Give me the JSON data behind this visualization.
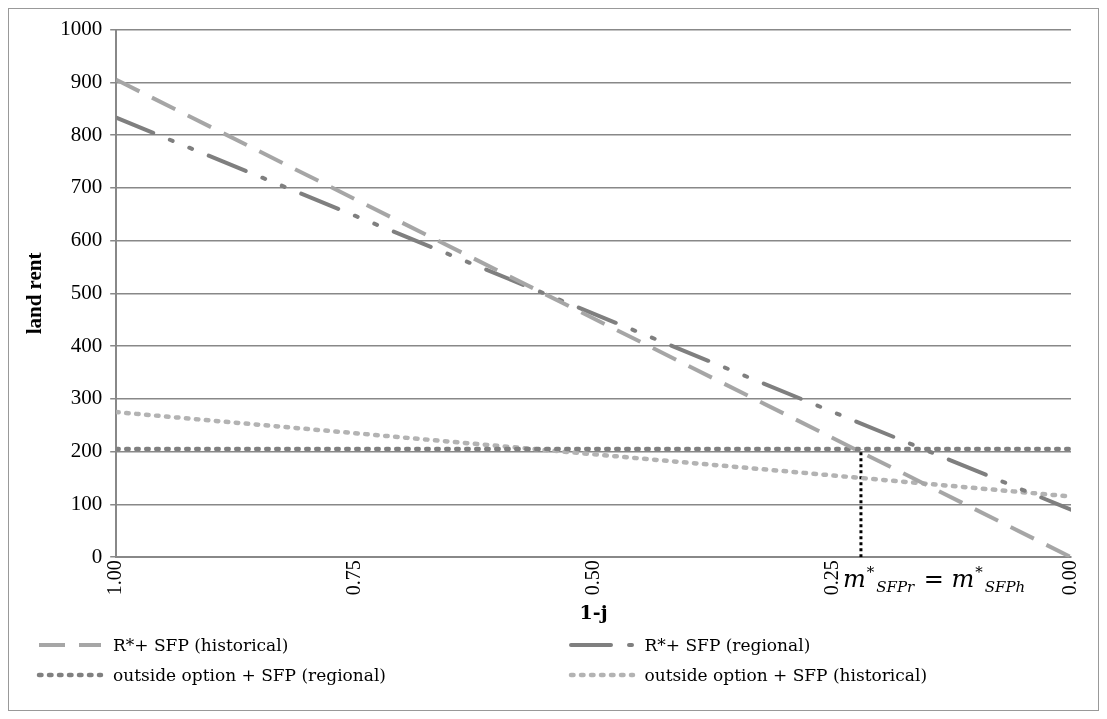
{
  "chart_data": {
    "type": "line",
    "xlabel": "1-j",
    "ylabel": "land rent",
    "xlim": [
      1,
      0
    ],
    "xticks": [
      {
        "value": 1,
        "label": "1.00"
      },
      {
        "value": 0.75,
        "label": "0.75"
      },
      {
        "value": 0.5,
        "label": "0.50"
      },
      {
        "value": 0.25,
        "label": "0.25"
      },
      {
        "value": 0,
        "label": "0.00"
      }
    ],
    "ylim": [
      0,
      1000
    ],
    "yticks": [
      0,
      100,
      200,
      300,
      400,
      500,
      600,
      700,
      800,
      900,
      1000
    ],
    "grid": "y",
    "legend": "bottom",
    "marker": "none",
    "series": [
      {
        "name": "R*+ SFP (historical)",
        "color": "#a6a6a6",
        "line_style": "dashed",
        "x": [
          1,
          0
        ],
        "values": [
          905,
          0
        ]
      },
      {
        "name": "R*+ SFP (regional)",
        "color": "#7f7f7f",
        "line_style": "dashdotdot",
        "x": [
          1,
          0
        ],
        "values": [
          833,
          90
        ]
      },
      {
        "name": "outside option + SFP (regional)",
        "color": "#808080",
        "line_style": "dotted",
        "x": [
          1,
          0
        ],
        "values": [
          205,
          205
        ]
      },
      {
        "name": "outside option + SFP (historical)",
        "color": "#b3b3b3",
        "line_style": "dotted",
        "x": [
          1,
          0
        ],
        "values": [
          275,
          115
        ]
      },
      {
        "color": "#000000",
        "line_style": "dotted",
        "x": [
          0.22,
          0.22
        ],
        "values": [
          0,
          205
        ]
      }
    ],
    "annotations": [
      {
        "text": "m$^{*}$$_{SFPr}$ = m$^{*}$$_{SFPh}$",
        "x": 0.22,
        "y": 0
      }
    ]
  }
}
